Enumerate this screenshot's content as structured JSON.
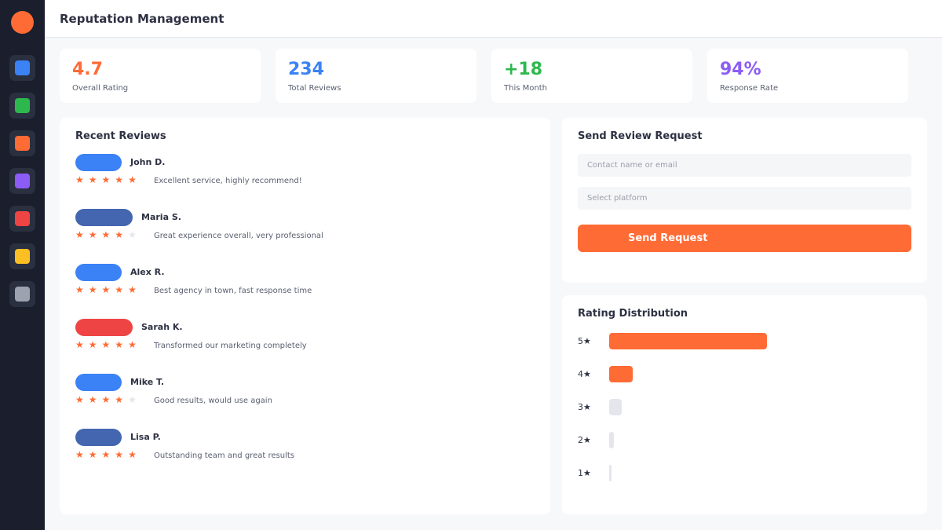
{
  "header": {
    "title": "Reputation Management"
  },
  "sidebar": {
    "items": [
      {
        "name": "nav-item-blue",
        "color": "#3b82f6"
      },
      {
        "name": "nav-item-green",
        "color": "#2db84d"
      },
      {
        "name": "nav-item-orange",
        "color": "#ff6b35"
      },
      {
        "name": "nav-item-purple",
        "color": "#8b5cf6"
      },
      {
        "name": "nav-item-red",
        "color": "#ef4444"
      },
      {
        "name": "nav-item-yellow",
        "color": "#fbbf24"
      },
      {
        "name": "nav-item-gray",
        "color": "#9ca3af"
      }
    ]
  },
  "stats": [
    {
      "value": "4.7",
      "label": "Overall Rating",
      "color": "#ff6b35"
    },
    {
      "value": "234",
      "label": "Total Reviews",
      "color": "#3b82f6"
    },
    {
      "value": "+18",
      "label": "This Month",
      "color": "#2db84d"
    },
    {
      "value": "94%",
      "label": "Response Rate",
      "color": "#8b5cf6"
    }
  ],
  "reviews": {
    "title": "Recent Reviews",
    "items": [
      {
        "name": "John D.",
        "rating": 5,
        "text": "Excellent service, highly recommend!",
        "avatar_color": "#3b82f6"
      },
      {
        "name": "Maria S.",
        "rating": 4,
        "text": "Great experience overall, very professional",
        "avatar_color": "#4466b0"
      },
      {
        "name": "Alex R.",
        "rating": 5,
        "text": "Best agency in town, fast response time",
        "avatar_color": "#3b82f6"
      },
      {
        "name": "Sarah K.",
        "rating": 5,
        "text": "Transformed our marketing completely",
        "avatar_color": "#ef4444"
      },
      {
        "name": "Mike T.",
        "rating": 4,
        "text": "Good results, would use again",
        "avatar_color": "#3b82f6"
      },
      {
        "name": "Lisa P.",
        "rating": 5,
        "text": "Outstanding team and great results",
        "avatar_color": "#4466b0"
      }
    ]
  },
  "request_form": {
    "title": "Send Review Request",
    "contact_placeholder": "Contact name or email",
    "platform_placeholder": "Select platform",
    "button_label": "Send Request"
  },
  "distribution": {
    "title": "Rating Distribution",
    "rows": [
      {
        "label": "5★",
        "fraction": 1.0,
        "color": "#ff6b35"
      },
      {
        "label": "4★",
        "fraction": 0.15,
        "color": "#ff6b35"
      },
      {
        "label": "3★",
        "fraction": 0.08,
        "color": "#e4e6ec"
      },
      {
        "label": "2★",
        "fraction": 0.03,
        "color": "#e4e6ec"
      },
      {
        "label": "1★",
        "fraction": 0.015,
        "color": "#e4e6ec"
      }
    ]
  }
}
